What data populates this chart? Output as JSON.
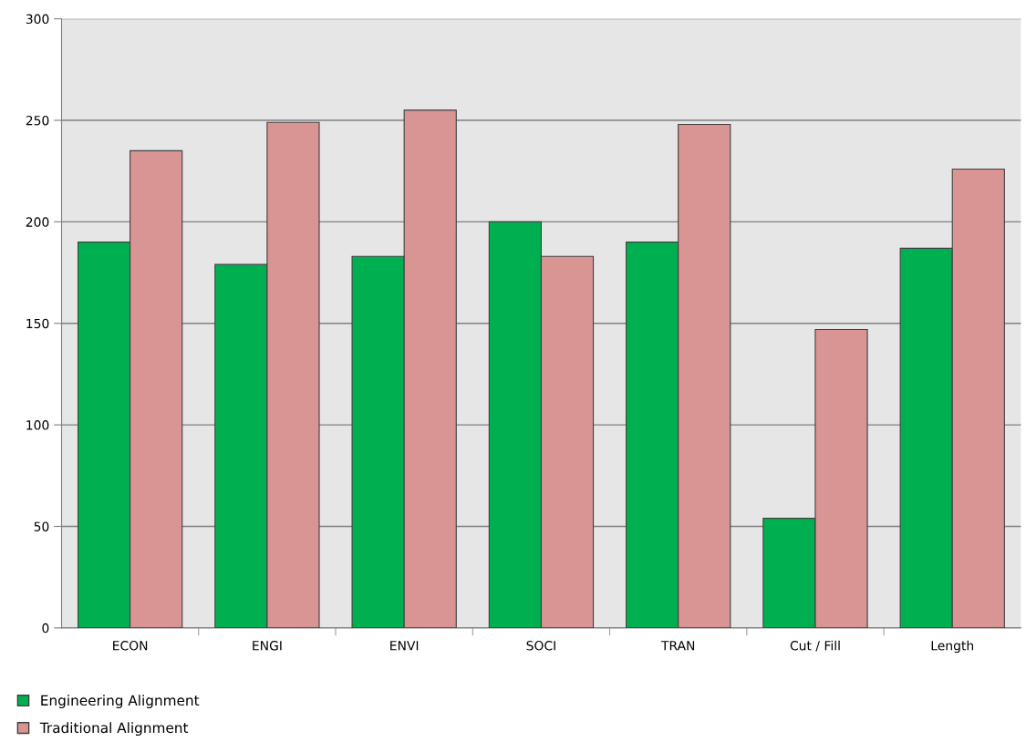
{
  "chart_data": {
    "type": "bar",
    "categories": [
      "ECON",
      "ENGI",
      "ENVI",
      "SOCI",
      "TRAN",
      "Cut / Fill",
      "Length"
    ],
    "series": [
      {
        "name": "Engineering Alignment",
        "color": "#00b050",
        "values": [
          190,
          179,
          183,
          200,
          190,
          54,
          187
        ]
      },
      {
        "name": "Traditional Alignment",
        "color": "#d99594",
        "values": [
          235,
          249,
          255,
          183,
          248,
          147,
          226
        ]
      }
    ],
    "ylim": [
      0,
      300
    ],
    "yticks": [
      0,
      50,
      100,
      150,
      200,
      250,
      300
    ],
    "grid": "y",
    "legend": "bottom left"
  }
}
